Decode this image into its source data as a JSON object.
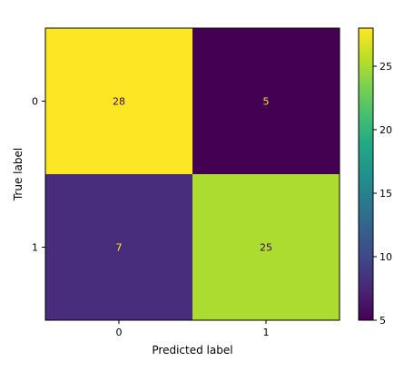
{
  "chart_data": {
    "type": "heatmap",
    "xlabel": "Predicted label",
    "ylabel": "True label",
    "x_categories": [
      "0",
      "1"
    ],
    "y_categories": [
      "0",
      "1"
    ],
    "matrix": [
      [
        28,
        5
      ],
      [
        7,
        25
      ]
    ],
    "colormap": "viridis",
    "colorbar": {
      "min": 5,
      "max": 28,
      "ticks": [
        5,
        10,
        15,
        20,
        25
      ]
    },
    "cell_colors": [
      [
        "#fde725",
        "#440154"
      ],
      [
        "#472d7b",
        "#addc30"
      ]
    ],
    "cell_text_colors": [
      [
        "#440154",
        "#fde725"
      ],
      [
        "#fde725",
        "#440154"
      ]
    ]
  }
}
